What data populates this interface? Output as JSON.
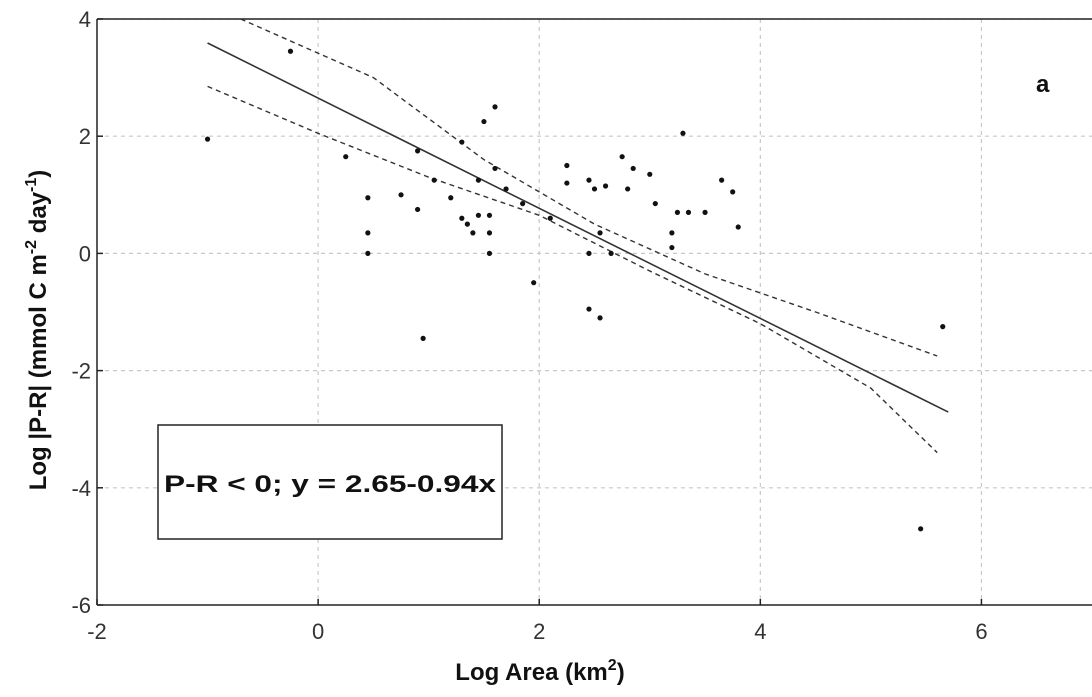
{
  "chart_data": {
    "type": "scatter",
    "panel_label": "a",
    "xlabel_main": "Log Area (km",
    "xlabel_sup": "2",
    "xlabel_close": ")",
    "ylabel_main": "Log |P-R| (mmol C m",
    "ylabel_sup1": "-2",
    "ylabel_mid": " day",
    "ylabel_sup2": "-1",
    "ylabel_close": ")",
    "equation_label": "P-R < 0; y = 2.65-0.94x",
    "xlim": [
      -2,
      7.0
    ],
    "ylim": [
      -6,
      4
    ],
    "x_ticks": [
      -2,
      0,
      2,
      4,
      6
    ],
    "x_tick_labels": [
      "-2",
      "0",
      "2",
      "4",
      "6"
    ],
    "y_ticks": [
      -6,
      -4,
      -2,
      0,
      2,
      4
    ],
    "y_tick_labels": [
      "-6",
      "-4",
      "-2",
      "0",
      "2",
      "4"
    ],
    "grid": true,
    "regression": {
      "intercept": 2.65,
      "slope": -0.94,
      "x_range": [
        -1.0,
        5.7
      ]
    },
    "confidence_upper": [
      [
        -0.7,
        4.0
      ],
      [
        0.5,
        3.0
      ],
      [
        1.5,
        1.6
      ],
      [
        2.5,
        0.5
      ],
      [
        3.5,
        -0.35
      ],
      [
        4.5,
        -1.0
      ],
      [
        5.6,
        -1.75
      ]
    ],
    "confidence_lower": [
      [
        -1.0,
        2.85
      ],
      [
        0.0,
        2.05
      ],
      [
        1.0,
        1.3
      ],
      [
        2.0,
        0.65
      ],
      [
        3.0,
        -0.3
      ],
      [
        4.0,
        -1.2
      ],
      [
        5.0,
        -2.3
      ],
      [
        5.6,
        -3.4
      ]
    ],
    "points": [
      {
        "x": -1.0,
        "y": 1.95
      },
      {
        "x": -0.25,
        "y": 3.45
      },
      {
        "x": 0.25,
        "y": 1.65
      },
      {
        "x": 0.45,
        "y": 0.95
      },
      {
        "x": 0.45,
        "y": 0.35
      },
      {
        "x": 0.45,
        "y": 0.0
      },
      {
        "x": 0.75,
        "y": 1.0
      },
      {
        "x": 0.9,
        "y": 1.75
      },
      {
        "x": 0.9,
        "y": 0.75
      },
      {
        "x": 0.95,
        "y": -1.45
      },
      {
        "x": 1.05,
        "y": 1.25
      },
      {
        "x": 1.2,
        "y": 0.95
      },
      {
        "x": 1.3,
        "y": 1.9
      },
      {
        "x": 1.3,
        "y": 0.6
      },
      {
        "x": 1.35,
        "y": 0.5
      },
      {
        "x": 1.4,
        "y": 0.35
      },
      {
        "x": 1.45,
        "y": 0.65
      },
      {
        "x": 1.45,
        "y": 1.25
      },
      {
        "x": 1.5,
        "y": 2.25
      },
      {
        "x": 1.55,
        "y": 0.65
      },
      {
        "x": 1.55,
        "y": 0.35
      },
      {
        "x": 1.55,
        "y": 0.0
      },
      {
        "x": 1.6,
        "y": 1.45
      },
      {
        "x": 1.6,
        "y": 2.5
      },
      {
        "x": 1.7,
        "y": 1.1
      },
      {
        "x": 1.85,
        "y": 0.85
      },
      {
        "x": 1.95,
        "y": -0.5
      },
      {
        "x": 2.1,
        "y": 0.6
      },
      {
        "x": 2.25,
        "y": 1.5
      },
      {
        "x": 2.25,
        "y": 1.2
      },
      {
        "x": 2.45,
        "y": 1.25
      },
      {
        "x": 2.45,
        "y": 0.0
      },
      {
        "x": 2.45,
        "y": -0.95
      },
      {
        "x": 2.5,
        "y": 1.1
      },
      {
        "x": 2.55,
        "y": 0.35
      },
      {
        "x": 2.55,
        "y": -1.1
      },
      {
        "x": 2.6,
        "y": 1.15
      },
      {
        "x": 2.65,
        "y": 0.0
      },
      {
        "x": 2.75,
        "y": 1.65
      },
      {
        "x": 2.8,
        "y": 1.1
      },
      {
        "x": 2.85,
        "y": 1.45
      },
      {
        "x": 3.0,
        "y": 1.35
      },
      {
        "x": 3.05,
        "y": 0.85
      },
      {
        "x": 3.2,
        "y": 0.35
      },
      {
        "x": 3.2,
        "y": 0.1
      },
      {
        "x": 3.25,
        "y": 0.7
      },
      {
        "x": 3.3,
        "y": 2.05
      },
      {
        "x": 3.35,
        "y": 0.7
      },
      {
        "x": 3.5,
        "y": 0.7
      },
      {
        "x": 3.65,
        "y": 1.25
      },
      {
        "x": 3.75,
        "y": 1.05
      },
      {
        "x": 3.8,
        "y": 0.45
      },
      {
        "x": 5.45,
        "y": -4.7
      },
      {
        "x": 5.65,
        "y": -1.25
      }
    ]
  }
}
